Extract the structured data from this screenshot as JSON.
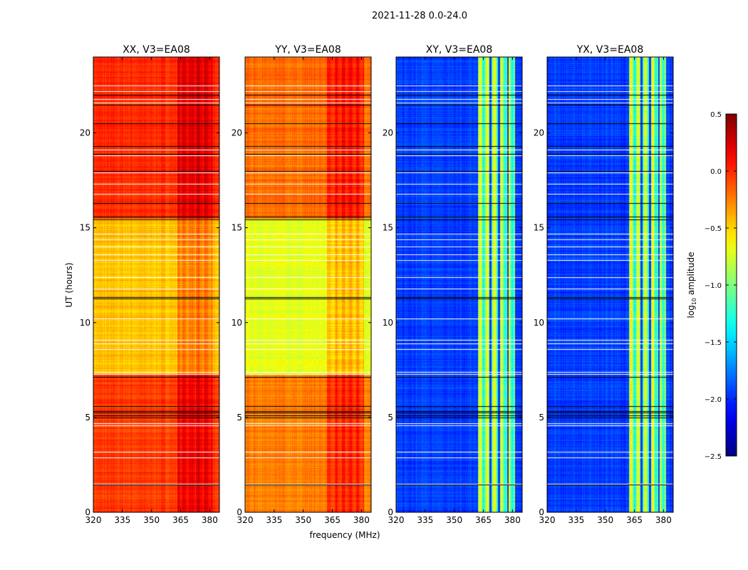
{
  "chart_data": {
    "type": "heatmap",
    "title": "2021-11-28 0.0-24.0",
    "xlabel": "frequency (MHz)",
    "ylabel": "UT (hours)",
    "xlim": [
      320,
      385
    ],
    "ylim": [
      0,
      24
    ],
    "xticks": [
      320,
      335,
      350,
      365,
      380
    ],
    "yticks": [
      0,
      5,
      10,
      15,
      20
    ],
    "colorbar": {
      "label": "log10 amplitude",
      "label_main": "log",
      "label_sub": "10",
      "label_rest": " amplitude",
      "colormap": "jet",
      "range": [
        -2.5,
        0.5
      ],
      "ticks": [
        "0.5",
        "0.0",
        "−0.5",
        "−1.0",
        "−1.5",
        "−2.0",
        "−2.5"
      ],
      "tick_values": [
        0.5,
        0.0,
        -0.5,
        -1.0,
        -1.5,
        -2.0,
        -2.5
      ]
    },
    "panels": [
      {
        "title": "XX, V3=EA08",
        "segments": [
          {
            "t": [
              0,
              7.3
            ],
            "level": -0.05
          },
          {
            "t": [
              7.3,
              15.5
            ],
            "level": -0.45
          },
          {
            "t": [
              15.5,
              24
            ],
            "level": 0.0
          }
        ],
        "band": {
          "f": [
            363,
            381
          ],
          "delta": 0.25
        }
      },
      {
        "title": "YY, V3=EA08",
        "segments": [
          {
            "t": [
              0,
              7.3
            ],
            "level": -0.25
          },
          {
            "t": [
              7.3,
              15.5
            ],
            "level": -0.7
          },
          {
            "t": [
              15.5,
              24
            ],
            "level": -0.2
          }
        ],
        "band": {
          "f": [
            362,
            381
          ],
          "delta": 0.3
        }
      },
      {
        "title": "XY, V3=EA08",
        "segments": [
          {
            "t": [
              0,
              24
            ],
            "level": -1.95
          }
        ],
        "band": {
          "f": [
            362,
            381
          ],
          "delta": 1.2
        },
        "band_gaps_mhz": [
          368.5,
          373,
          377.5
        ]
      },
      {
        "title": "YX, V3=EA08",
        "segments": [
          {
            "t": [
              0,
              24
            ],
            "level": -1.95
          }
        ],
        "band": {
          "f": [
            362,
            381
          ],
          "delta": 1.2
        },
        "band_gaps_mhz": [
          368.5,
          373,
          377.5
        ]
      }
    ],
    "flagged_rows_hours": [
      1.5,
      2.9,
      3.2,
      4.6,
      4.7,
      7.3,
      7.4,
      8.6,
      8.9,
      9.1,
      10.2,
      11.8,
      12.4,
      13.3,
      13.6,
      14.0,
      14.4,
      14.7,
      15.6,
      16.8,
      17.3,
      17.9,
      18.8,
      19.1,
      21.6,
      21.8,
      22.2,
      22.5
    ],
    "black_rows_hours": [
      1.45,
      5.0,
      5.1,
      5.25,
      5.35,
      5.6,
      7.15,
      11.25,
      11.35,
      15.45,
      15.6,
      16.3,
      18.0,
      18.9,
      19.3,
      20.5,
      21.5,
      22.0
    ]
  }
}
